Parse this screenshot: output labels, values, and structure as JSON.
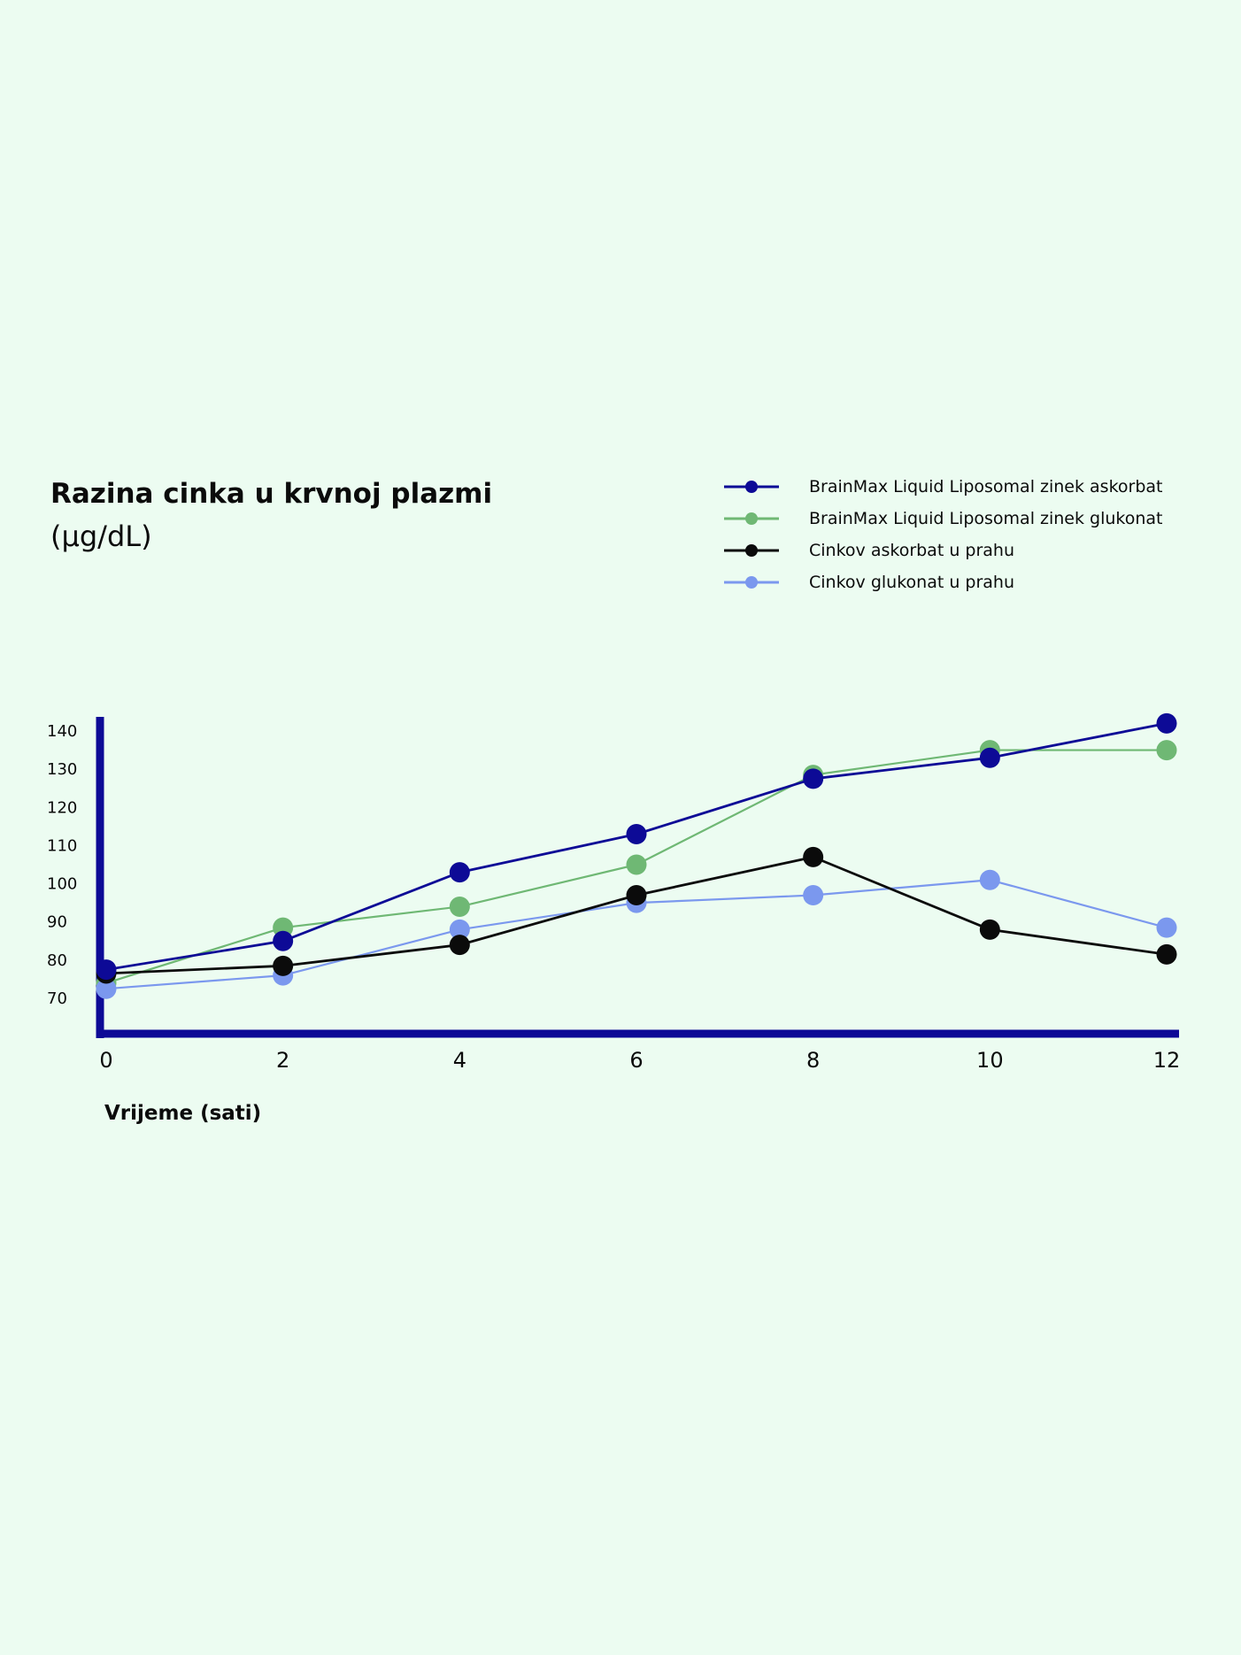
{
  "chart_data": {
    "type": "line",
    "title": "Razina cinka u krvnoj plazmi",
    "subtitle": "(µg/dL)",
    "xlabel": "Vrijeme (sati)",
    "ylabel": "",
    "x": [
      0,
      2,
      4,
      6,
      8,
      10,
      12
    ],
    "x_ticks": [
      "0",
      "2",
      "4",
      "6",
      "8",
      "10",
      "12"
    ],
    "y_ticks": [
      "140",
      "130",
      "120",
      "110",
      "100",
      "90",
      "80",
      "70"
    ],
    "ylim": [
      60,
      145
    ],
    "xlim": [
      0,
      12
    ],
    "grid": false,
    "legend_position": "top-right",
    "axis_color": "#0d0a96",
    "series": [
      {
        "name": "BrainMax Liquid Liposomal zinek askorbat",
        "color": "#0d0a96",
        "values": [
          77.5,
          85,
          103,
          113,
          127.5,
          133,
          142
        ]
      },
      {
        "name": "BrainMax Liquid Liposomal zinek glukonat",
        "color": "#6fb874",
        "values": [
          74,
          88.5,
          94,
          105,
          128.5,
          135,
          135
        ]
      },
      {
        "name": "Cinkov askorbat u prahu",
        "color": "#0b0b0b",
        "values": [
          76.5,
          78.5,
          84,
          97,
          107,
          88,
          81.5
        ]
      },
      {
        "name": "Cinkov glukonat u prahu",
        "color": "#7b98ee",
        "values": [
          72.5,
          76,
          88,
          95,
          97,
          101,
          88.5
        ]
      }
    ]
  }
}
